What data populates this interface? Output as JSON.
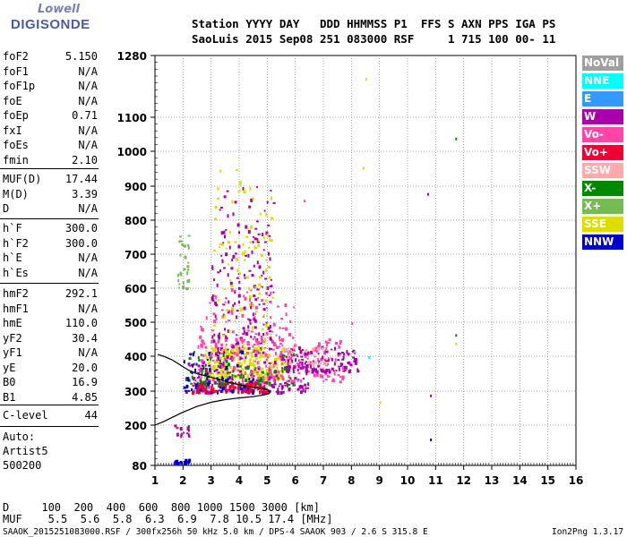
{
  "logo": {
    "brand_top": "Lowell",
    "brand_bottom": "DIGISONDE"
  },
  "header": {
    "line1": "Station YYYY DAY   DDD HHMMSS P1  FFS S AXN PPS IGA PS",
    "line2": "SaoLuis 2015 Sep08 251 083000 RSF     1 715 100 00- 11"
  },
  "params": {
    "group1": [
      {
        "k": "foF2",
        "v": "5.150"
      },
      {
        "k": "foF1",
        "v": "N/A"
      },
      {
        "k": "foF1p",
        "v": "N/A"
      },
      {
        "k": "foE",
        "v": "N/A"
      },
      {
        "k": "foEp",
        "v": "0.71"
      },
      {
        "k": "fxI",
        "v": "N/A"
      },
      {
        "k": "foEs",
        "v": "N/A"
      },
      {
        "k": "fmin",
        "v": "2.10"
      }
    ],
    "group2": [
      {
        "k": "MUF(D)",
        "v": "17.44"
      },
      {
        "k": "M(D)",
        "v": "3.39"
      },
      {
        "k": "D",
        "v": "N/A"
      }
    ],
    "group3": [
      {
        "k": "h`F",
        "v": "300.0"
      },
      {
        "k": "h`F2",
        "v": "300.0"
      },
      {
        "k": "h`E",
        "v": "N/A"
      },
      {
        "k": "h`Es",
        "v": "N/A"
      }
    ],
    "group4": [
      {
        "k": "hmF2",
        "v": "292.1"
      },
      {
        "k": "hmF1",
        "v": "N/A"
      },
      {
        "k": "hmE",
        "v": "110.0"
      },
      {
        "k": "yF2",
        "v": "30.4"
      },
      {
        "k": "yF1",
        "v": "N/A"
      },
      {
        "k": "yE",
        "v": "20.0"
      },
      {
        "k": "B0",
        "v": "16.9"
      },
      {
        "k": "B1",
        "v": "4.85"
      }
    ],
    "group5": [
      {
        "k": "C-level",
        "v": "44"
      }
    ]
  },
  "autoscale": {
    "line1": "Auto:",
    "line2": "Artist5",
    "line3": "500200"
  },
  "bottom": {
    "d_row": "D     100  200  400  600  800 1000 1500 3000 [km]",
    "muf_row": "MUF    5.5  5.6  5.8  6.3  6.9  7.8 10.5 17.4 [MHz]"
  },
  "footer": {
    "left": "SAAOK_2015251083000.RSF / 300fx256h 50 kHz 5.0 km / DPS-4 SAAOK 903 / 2.6 S 315.8 E",
    "right": "Ion2Png 1.3.17"
  },
  "colors": {
    "NoVal": "#a0a0a0",
    "NNE": "#00ffff",
    "E": "#3399ff",
    "W": "#aa00aa",
    "Vo-": "#ff44aa",
    "Vo+": "#ee0033",
    "SSW": "#ffaaaa",
    "X-": "#008800",
    "X+": "#77bb55",
    "SSE": "#dddd00",
    "NNW": "#0000cc"
  },
  "chart_data": {
    "type": "scatter",
    "xlabel": "",
    "ylabel": "",
    "xlim": [
      1,
      16
    ],
    "ylim": [
      80,
      1280
    ],
    "x_ticks": [
      1,
      2,
      3,
      4,
      5,
      6,
      7,
      8,
      9,
      10,
      11,
      12,
      13,
      14,
      15,
      16
    ],
    "y_ticks": [
      80,
      200,
      300,
      400,
      500,
      600,
      700,
      800,
      900,
      1000,
      1100,
      1280
    ],
    "grid": true,
    "legend": [
      "NoVal",
      "NNE",
      "E",
      "W",
      "Vo-",
      "Vo+",
      "SSW",
      "X-",
      "X+",
      "SSE",
      "NNW"
    ],
    "legend_placement": "right",
    "profile": {
      "x": [
        1.0,
        1.3,
        1.6,
        2.0,
        2.5,
        3.0,
        3.5,
        4.0,
        4.5,
        4.9,
        5.05,
        5.1,
        5.0,
        4.6,
        4.0,
        3.5,
        3.0,
        2.5,
        2.2,
        2.0,
        1.8,
        1.6,
        1.3,
        1.1
      ],
      "y": [
        200,
        210,
        222,
        238,
        255,
        267,
        275,
        280,
        284,
        289,
        292,
        300,
        305,
        310,
        318,
        328,
        340,
        350,
        360,
        370,
        380,
        390,
        400,
        405
      ]
    },
    "echo_clusters": [
      {
        "series": "SSE",
        "x": [
          2.7,
          5.6
        ],
        "y": [
          340,
          430
        ],
        "n": 260
      },
      {
        "series": "W",
        "x": [
          2.0,
          6.5
        ],
        "y": [
          300,
          420
        ],
        "n": 220
      },
      {
        "series": "Vo+",
        "x": [
          2.3,
          5.0
        ],
        "y": [
          300,
          330
        ],
        "n": 120
      },
      {
        "series": "Vo-",
        "x": [
          2.5,
          7.8
        ],
        "y": [
          330,
          460
        ],
        "n": 180
      },
      {
        "series": "W",
        "x": [
          5.5,
          8.2
        ],
        "y": [
          360,
          430
        ],
        "n": 120
      },
      {
        "series": "X-",
        "x": [
          2.0,
          6.0
        ],
        "y": [
          320,
          420
        ],
        "n": 70
      },
      {
        "series": "W",
        "x": [
          3.0,
          5.2
        ],
        "y": [
          420,
          900
        ],
        "n": 180
      },
      {
        "series": "SSE",
        "x": [
          3.0,
          5.2
        ],
        "y": [
          420,
          950
        ],
        "n": 110
      },
      {
        "series": "Vo-",
        "x": [
          2.5,
          6.0
        ],
        "y": [
          430,
          600
        ],
        "n": 90
      },
      {
        "series": "NNW",
        "x": [
          2.0,
          4.5
        ],
        "y": [
          300,
          420
        ],
        "n": 60
      },
      {
        "series": "X+",
        "x": [
          1.8,
          2.2
        ],
        "y": [
          600,
          760
        ],
        "n": 30
      },
      {
        "series": "NNW",
        "x": [
          1.6,
          2.2
        ],
        "y": [
          90,
          100
        ],
        "n": 20
      },
      {
        "series": "W",
        "x": [
          1.6,
          2.2
        ],
        "y": [
          170,
          210
        ],
        "n": 15
      },
      {
        "series": "SSW",
        "x": [
          5.6,
          7.2
        ],
        "y": [
          380,
          430
        ],
        "n": 40
      }
    ],
    "isolated_points": [
      {
        "series": "SSE",
        "x": 8.5,
        "y": 1215
      },
      {
        "series": "X-",
        "x": 11.7,
        "y": 1040
      },
      {
        "series": "W",
        "x": 10.7,
        "y": 880
      },
      {
        "series": "SSE",
        "x": 8.4,
        "y": 955
      },
      {
        "series": "Vo-",
        "x": 6.3,
        "y": 860
      },
      {
        "series": "X-",
        "x": 11.7,
        "y": 465
      },
      {
        "series": "SSE",
        "x": 11.7,
        "y": 440
      },
      {
        "series": "NNW",
        "x": 10.8,
        "y": 160
      },
      {
        "series": "W",
        "x": 10.8,
        "y": 290
      },
      {
        "series": "SSE",
        "x": 9.0,
        "y": 270
      },
      {
        "series": "Vo-",
        "x": 8.0,
        "y": 500
      },
      {
        "series": "NNE",
        "x": 8.6,
        "y": 400
      }
    ]
  }
}
